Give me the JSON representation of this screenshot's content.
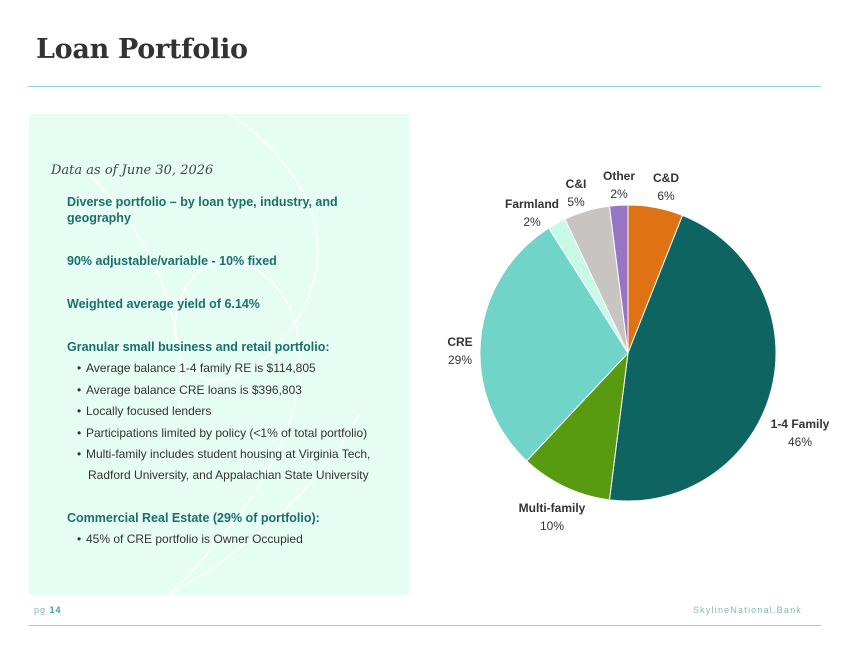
{
  "header": {
    "title": "Loan Portfolio"
  },
  "panel": {
    "as_of": "Data as of June 30, 2026",
    "highlights": [
      "Diverse portfolio – by loan type, industry, and geography",
      "90% adjustable/variable - 10% fixed",
      "Weighted average yield of 6.14%"
    ],
    "granular": {
      "heading": "Granular small business and retail portfolio:",
      "items": [
        "Average balance 1-4 family RE is $114,805",
        "Average balance CRE loans is $396,803",
        "Locally focused lenders",
        "Participations limited by policy (<1% of total portfolio)",
        "Multi-family includes student housing at Virginia Tech,"
      ],
      "continuation": "Radford University, and Appalachian State University"
    },
    "cre": {
      "heading": "Commercial Real Estate (29% of portfolio):",
      "items": [
        "45% of CRE portfolio is Owner Occupied"
      ]
    }
  },
  "chart_data": {
    "type": "pie",
    "title": "",
    "slices": [
      {
        "label": "C&D",
        "value": 6,
        "display": "6%",
        "color": "#e07216"
      },
      {
        "label": "1-4 Family",
        "value": 46,
        "display": "46%",
        "color": "#0d6461"
      },
      {
        "label": "Multi-family",
        "value": 10,
        "display": "10%",
        "color": "#589a10"
      },
      {
        "label": "CRE",
        "value": 29,
        "display": "29%",
        "color": "#70d4c8"
      },
      {
        "label": "Farmland",
        "value": 2,
        "display": "2%",
        "color": "#c8f8e6"
      },
      {
        "label": "C&I",
        "value": 5,
        "display": "5%",
        "color": "#c8c4c1"
      },
      {
        "label": "Other",
        "value": 2,
        "display": "2%",
        "color": "#9676c4"
      }
    ]
  },
  "footer": {
    "page_prefix": "pg",
    "page_number": "14",
    "brand": "SkylineNational.Bank"
  }
}
